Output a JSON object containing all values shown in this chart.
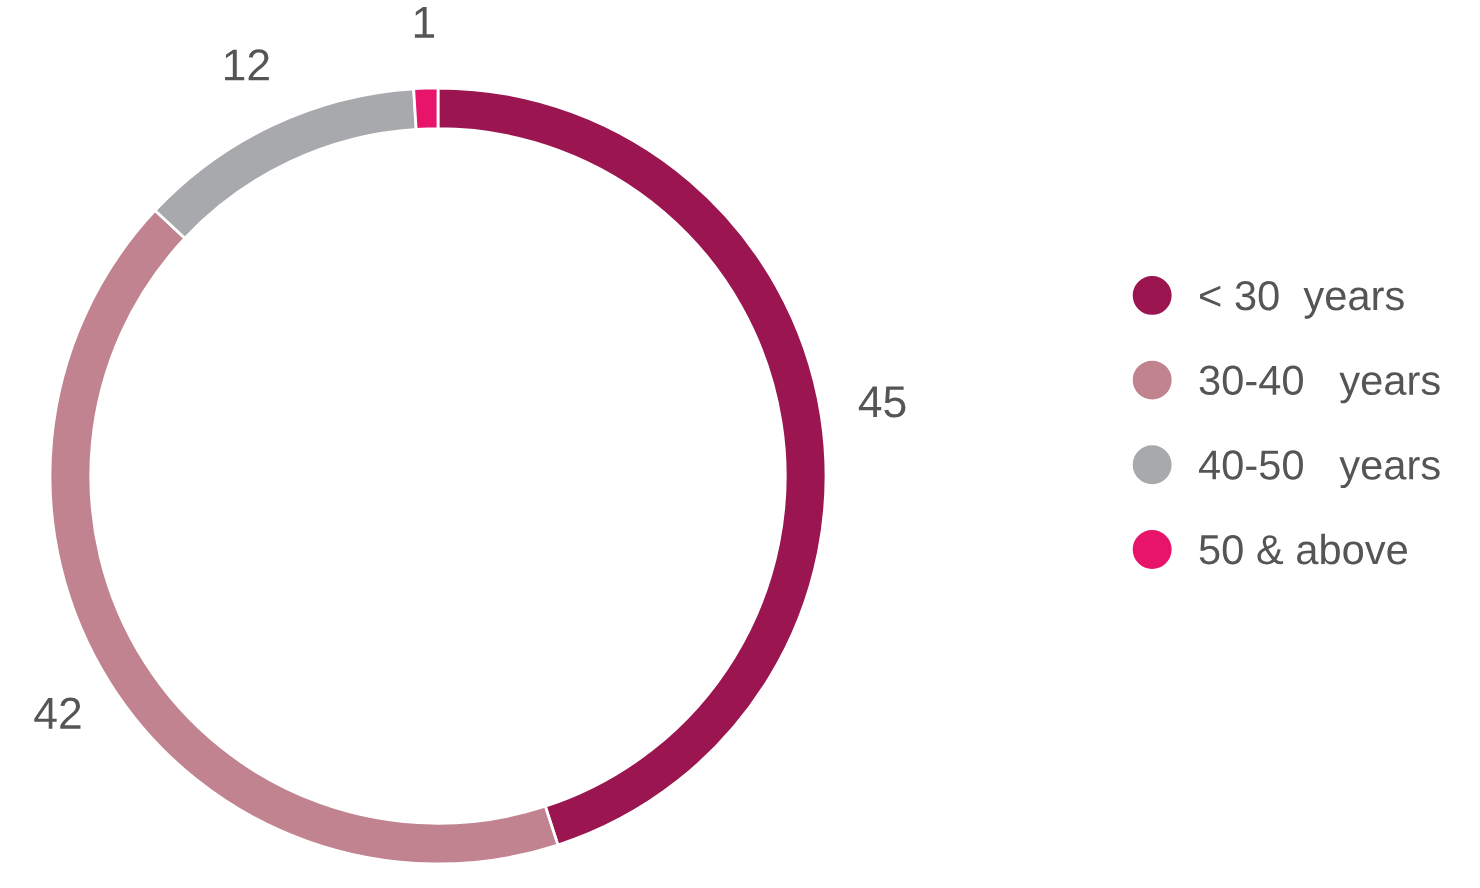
{
  "chart_data": {
    "type": "donut",
    "categories": [
      "< 30  years",
      "30-40   years",
      "40-50   years",
      "50 & above"
    ],
    "values": [
      45,
      42,
      12,
      1
    ],
    "colors": [
      "#9b1550",
      "#c0838f",
      "#a7a9ac",
      "#e8146a"
    ],
    "data_labels": true,
    "legend": "right"
  }
}
